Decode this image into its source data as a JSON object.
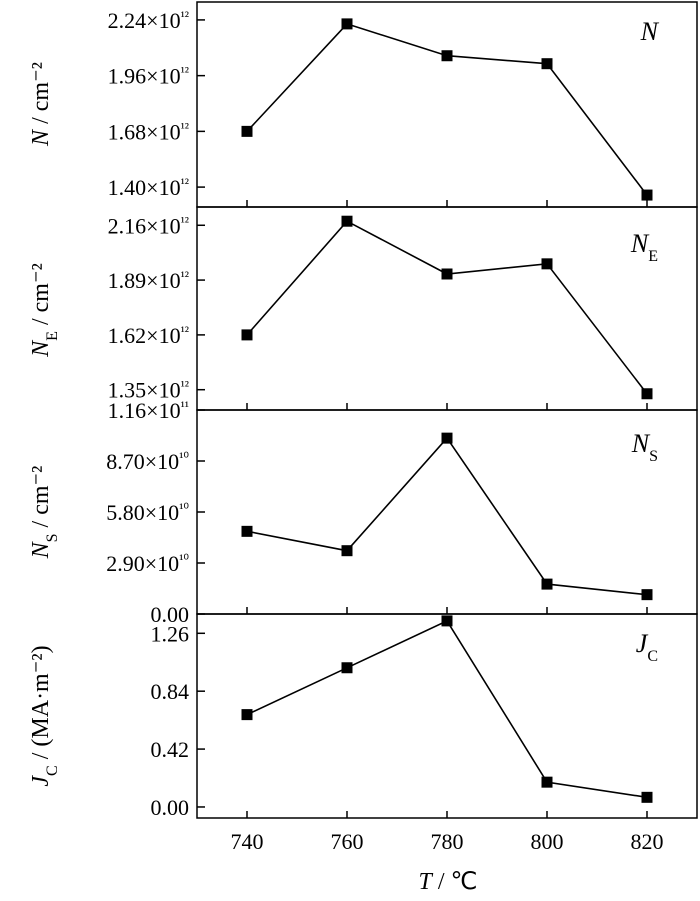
{
  "chart_data": {
    "type": "line",
    "x": [
      740,
      760,
      780,
      800,
      820
    ],
    "xlabel": "T / ℃",
    "xlim": [
      730,
      830
    ],
    "x_ticks": [
      "740",
      "760",
      "780",
      "800",
      "820"
    ],
    "panels": [
      {
        "id": "N",
        "label": "N",
        "ylabel": "N / cm⁻²",
        "ylim": [
          1300000000000.0,
          2330000000000.0
        ],
        "yticks": [
          1400000000000.0,
          1680000000000.0,
          1960000000000.0,
          2240000000000.0
        ],
        "ytick_labels": [
          "1.40×10¹²",
          "1.68×10¹²",
          "1.96×10¹²",
          "2.24×10¹²"
        ],
        "values": [
          1680000000000.0,
          2220000000000.0,
          2060000000000.0,
          2020000000000.0,
          1360000000000.0
        ]
      },
      {
        "id": "NE",
        "label": "NE",
        "ylabel": "NE / cm⁻²",
        "ylim": [
          1250000000000.0,
          2250000000000.0
        ],
        "yticks": [
          1350000000000.0,
          1620000000000.0,
          1890000000000.0,
          2160000000000.0
        ],
        "ytick_labels": [
          "1.35×10¹²",
          "1.62×10¹²",
          "1.89×10¹²",
          "2.16×10¹²"
        ],
        "values": [
          1620000000000.0,
          2180000000000.0,
          1920000000000.0,
          1970000000000.0,
          1330000000000.0
        ]
      },
      {
        "id": "NS",
        "label": "NS",
        "ylabel": "NS / cm⁻²",
        "ylim": [
          0,
          116000000000.0
        ],
        "yticks": [
          0,
          29000000000.0,
          58000000000.0,
          87000000000.0,
          116000000000.0
        ],
        "ytick_labels": [
          "0.00",
          "2.90×10¹⁰",
          "5.80×10¹⁰",
          "8.70×10¹⁰",
          "1.16×10¹¹"
        ],
        "values": [
          47000000000.0,
          36000000000.0,
          100000000000.0,
          17000000000.0,
          11000000000.0
        ]
      },
      {
        "id": "JC",
        "label": "JC",
        "ylabel": "JC / (MA·m⁻²)",
        "ylim": [
          -0.08,
          1.4
        ],
        "yticks": [
          0.0,
          0.42,
          0.84,
          1.26
        ],
        "ytick_labels": [
          "0.00",
          "0.42",
          "0.84",
          "1.26"
        ],
        "values": [
          0.67,
          1.01,
          1.35,
          0.18,
          0.07
        ]
      }
    ]
  }
}
